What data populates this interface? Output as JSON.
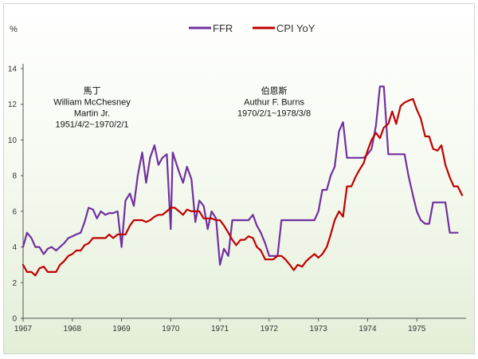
{
  "chart_data": {
    "type": "line",
    "ylabel": "%",
    "ylim": [
      0,
      14
    ],
    "yticks": [
      "0",
      "2",
      "4",
      "6",
      "8",
      "10",
      "12",
      "14"
    ],
    "xlim": [
      1967,
      1976
    ],
    "xticks": [
      "1967",
      "1968",
      "1969",
      "1970",
      "1971",
      "1972",
      "1973",
      "1974",
      "1975"
    ],
    "grid": false,
    "legend_position": "top-center",
    "series": [
      {
        "name": "FFR",
        "color": "#7030a0",
        "points": [
          [
            1967.0,
            4.0
          ],
          [
            1967.08,
            4.8
          ],
          [
            1967.17,
            4.5
          ],
          [
            1967.25,
            4.0
          ],
          [
            1967.33,
            4.0
          ],
          [
            1967.42,
            3.6
          ],
          [
            1967.5,
            3.9
          ],
          [
            1967.58,
            4.0
          ],
          [
            1967.67,
            3.8
          ],
          [
            1967.75,
            4.0
          ],
          [
            1967.83,
            4.2
          ],
          [
            1967.92,
            4.5
          ],
          [
            1968.0,
            4.6
          ],
          [
            1968.08,
            4.7
          ],
          [
            1968.17,
            4.8
          ],
          [
            1968.25,
            5.4
          ],
          [
            1968.33,
            6.2
          ],
          [
            1968.42,
            6.1
          ],
          [
            1968.5,
            5.6
          ],
          [
            1968.58,
            6.0
          ],
          [
            1968.67,
            5.8
          ],
          [
            1968.75,
            5.9
          ],
          [
            1968.83,
            5.9
          ],
          [
            1968.92,
            6.0
          ],
          [
            1969.0,
            4.0
          ],
          [
            1969.08,
            6.6
          ],
          [
            1969.17,
            7.0
          ],
          [
            1969.25,
            6.3
          ],
          [
            1969.33,
            8.0
          ],
          [
            1969.42,
            9.3
          ],
          [
            1969.5,
            7.6
          ],
          [
            1969.58,
            9.0
          ],
          [
            1969.67,
            9.7
          ],
          [
            1969.75,
            8.6
          ],
          [
            1969.83,
            9.0
          ],
          [
            1969.92,
            9.2
          ],
          [
            1970.0,
            5.0
          ],
          [
            1970.04,
            9.3
          ],
          [
            1970.17,
            8.2
          ],
          [
            1970.25,
            7.6
          ],
          [
            1970.33,
            8.5
          ],
          [
            1970.42,
            7.8
          ],
          [
            1970.5,
            5.4
          ],
          [
            1970.58,
            6.6
          ],
          [
            1970.67,
            6.3
          ],
          [
            1970.75,
            5.0
          ],
          [
            1970.83,
            6.0
          ],
          [
            1970.92,
            5.6
          ],
          [
            1971.0,
            3.0
          ],
          [
            1971.08,
            3.9
          ],
          [
            1971.17,
            3.5
          ],
          [
            1971.25,
            5.5
          ],
          [
            1971.33,
            5.5
          ],
          [
            1971.42,
            5.5
          ],
          [
            1971.5,
            5.5
          ],
          [
            1971.58,
            5.5
          ],
          [
            1971.67,
            5.8
          ],
          [
            1971.75,
            5.2
          ],
          [
            1971.83,
            4.8
          ],
          [
            1971.92,
            4.2
          ],
          [
            1972.0,
            3.5
          ],
          [
            1972.08,
            3.5
          ],
          [
            1972.17,
            3.5
          ],
          [
            1972.25,
            5.5
          ],
          [
            1972.33,
            5.5
          ],
          [
            1972.42,
            5.5
          ],
          [
            1972.5,
            5.5
          ],
          [
            1972.58,
            5.5
          ],
          [
            1972.67,
            5.5
          ],
          [
            1972.75,
            5.5
          ],
          [
            1972.83,
            5.5
          ],
          [
            1972.92,
            5.5
          ],
          [
            1973.0,
            6.0
          ],
          [
            1973.08,
            7.2
          ],
          [
            1973.17,
            7.2
          ],
          [
            1973.25,
            8.0
          ],
          [
            1973.33,
            8.5
          ],
          [
            1973.42,
            10.5
          ],
          [
            1973.5,
            11.0
          ],
          [
            1973.58,
            9.0
          ],
          [
            1973.67,
            9.0
          ],
          [
            1973.75,
            9.0
          ],
          [
            1973.83,
            9.0
          ],
          [
            1973.92,
            9.0
          ],
          [
            1974.0,
            9.2
          ],
          [
            1974.08,
            9.5
          ],
          [
            1974.17,
            10.8
          ],
          [
            1974.25,
            13.0
          ],
          [
            1974.33,
            13.0
          ],
          [
            1974.42,
            9.2
          ],
          [
            1974.5,
            9.2
          ],
          [
            1974.58,
            9.2
          ],
          [
            1974.67,
            9.2
          ],
          [
            1974.75,
            9.2
          ],
          [
            1974.83,
            8.0
          ],
          [
            1974.92,
            6.9
          ],
          [
            1975.0,
            6.0
          ],
          [
            1975.08,
            5.5
          ],
          [
            1975.17,
            5.3
          ],
          [
            1975.25,
            5.3
          ],
          [
            1975.33,
            6.5
          ],
          [
            1975.42,
            6.5
          ],
          [
            1975.5,
            6.5
          ],
          [
            1975.58,
            6.5
          ],
          [
            1975.67,
            4.8
          ],
          [
            1975.75,
            4.8
          ],
          [
            1975.83,
            4.8
          ]
        ]
      },
      {
        "name": "CPI YoY",
        "color": "#c00000",
        "points": [
          [
            1967.0,
            3.0
          ],
          [
            1967.08,
            2.6
          ],
          [
            1967.17,
            2.6
          ],
          [
            1967.25,
            2.4
          ],
          [
            1967.33,
            2.8
          ],
          [
            1967.42,
            2.9
          ],
          [
            1967.5,
            2.6
          ],
          [
            1967.58,
            2.6
          ],
          [
            1967.67,
            2.6
          ],
          [
            1967.75,
            3.0
          ],
          [
            1967.83,
            3.2
          ],
          [
            1967.92,
            3.5
          ],
          [
            1968.0,
            3.6
          ],
          [
            1968.08,
            3.8
          ],
          [
            1968.17,
            3.8
          ],
          [
            1968.25,
            4.1
          ],
          [
            1968.33,
            4.2
          ],
          [
            1968.42,
            4.5
          ],
          [
            1968.5,
            4.5
          ],
          [
            1968.58,
            4.5
          ],
          [
            1968.67,
            4.5
          ],
          [
            1968.75,
            4.7
          ],
          [
            1968.83,
            4.5
          ],
          [
            1968.92,
            4.7
          ],
          [
            1969.0,
            4.7
          ],
          [
            1969.08,
            4.7
          ],
          [
            1969.17,
            5.2
          ],
          [
            1969.25,
            5.5
          ],
          [
            1969.33,
            5.5
          ],
          [
            1969.42,
            5.5
          ],
          [
            1969.5,
            5.4
          ],
          [
            1969.58,
            5.5
          ],
          [
            1969.67,
            5.7
          ],
          [
            1969.75,
            5.8
          ],
          [
            1969.83,
            5.8
          ],
          [
            1969.92,
            6.0
          ],
          [
            1970.0,
            6.2
          ],
          [
            1970.08,
            6.2
          ],
          [
            1970.17,
            6.0
          ],
          [
            1970.25,
            5.8
          ],
          [
            1970.33,
            6.1
          ],
          [
            1970.42,
            6.0
          ],
          [
            1970.5,
            6.0
          ],
          [
            1970.58,
            6.0
          ],
          [
            1970.67,
            5.6
          ],
          [
            1970.75,
            5.6
          ],
          [
            1970.83,
            5.6
          ],
          [
            1970.92,
            5.5
          ],
          [
            1971.0,
            5.5
          ],
          [
            1971.08,
            5.2
          ],
          [
            1971.17,
            4.8
          ],
          [
            1971.25,
            4.4
          ],
          [
            1971.33,
            4.1
          ],
          [
            1971.42,
            4.4
          ],
          [
            1971.5,
            4.4
          ],
          [
            1971.58,
            4.6
          ],
          [
            1971.67,
            4.5
          ],
          [
            1971.75,
            4.0
          ],
          [
            1971.83,
            3.8
          ],
          [
            1971.92,
            3.3
          ],
          [
            1972.0,
            3.3
          ],
          [
            1972.08,
            3.3
          ],
          [
            1972.17,
            3.5
          ],
          [
            1972.25,
            3.5
          ],
          [
            1972.33,
            3.3
          ],
          [
            1972.42,
            3.0
          ],
          [
            1972.5,
            2.7
          ],
          [
            1972.58,
            3.0
          ],
          [
            1972.67,
            2.9
          ],
          [
            1972.75,
            3.2
          ],
          [
            1972.83,
            3.4
          ],
          [
            1972.92,
            3.6
          ],
          [
            1973.0,
            3.4
          ],
          [
            1973.08,
            3.6
          ],
          [
            1973.17,
            4.0
          ],
          [
            1973.25,
            4.7
          ],
          [
            1973.33,
            5.5
          ],
          [
            1973.42,
            6.0
          ],
          [
            1973.5,
            5.7
          ],
          [
            1973.58,
            7.4
          ],
          [
            1973.67,
            7.4
          ],
          [
            1973.75,
            7.9
          ],
          [
            1973.83,
            8.3
          ],
          [
            1973.92,
            8.7
          ],
          [
            1974.0,
            9.4
          ],
          [
            1974.08,
            10.0
          ],
          [
            1974.17,
            10.4
          ],
          [
            1974.25,
            10.1
          ],
          [
            1974.33,
            10.7
          ],
          [
            1974.42,
            10.9
          ],
          [
            1974.5,
            11.6
          ],
          [
            1974.58,
            10.9
          ],
          [
            1974.67,
            11.9
          ],
          [
            1974.75,
            12.1
          ],
          [
            1974.83,
            12.2
          ],
          [
            1974.92,
            12.3
          ],
          [
            1975.0,
            11.7
          ],
          [
            1975.08,
            11.2
          ],
          [
            1975.17,
            10.2
          ],
          [
            1975.25,
            10.2
          ],
          [
            1975.33,
            9.5
          ],
          [
            1975.42,
            9.4
          ],
          [
            1975.5,
            9.7
          ],
          [
            1975.58,
            8.6
          ],
          [
            1975.67,
            7.9
          ],
          [
            1975.75,
            7.4
          ],
          [
            1975.83,
            7.4
          ],
          [
            1975.92,
            6.9
          ]
        ]
      }
    ],
    "annotations": [
      {
        "lines": [
          "馬丁",
          "William McChesney",
          "Martin Jr.",
          "1951/4/2~1970/2/1"
        ],
        "x": 1968.4,
        "y": 12.6
      },
      {
        "lines": [
          "伯恩斯",
          "Authur F. Burns",
          "1970/2/1~1978/3/8"
        ],
        "x": 1972.1,
        "y": 12.6
      }
    ]
  }
}
